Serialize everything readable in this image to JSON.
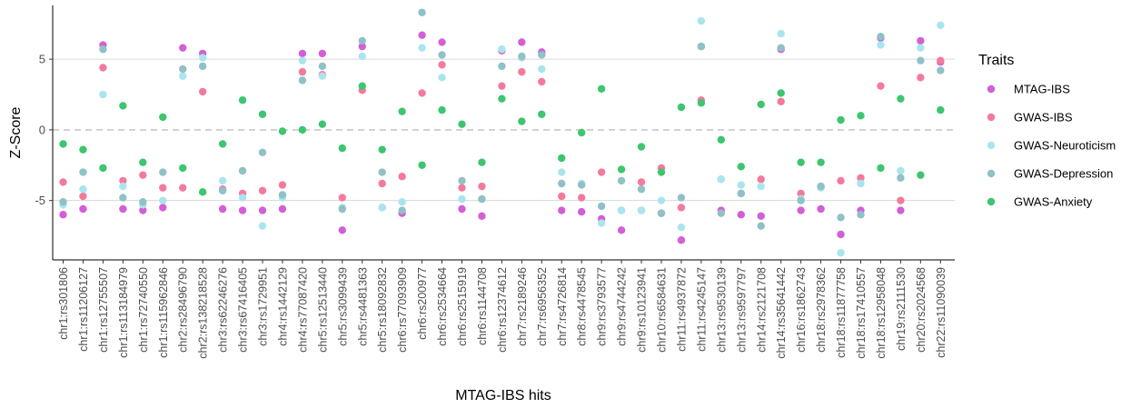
{
  "chart_data": {
    "type": "scatter",
    "title": "",
    "xlabel": "MTAG-IBS hits",
    "ylabel": "Z-Score",
    "ylim": [
      -9.2,
      8.8
    ],
    "yticks": [
      -5,
      0,
      5
    ],
    "grid": "horizontal major lines at -5 and 5, dashed line at 0",
    "legend": {
      "title": "Traits",
      "placement": "right"
    },
    "categories": [
      "chr1:rs301806",
      "chr1:rs11206127",
      "chr1:rs12755507",
      "chr1:rs113184979",
      "chr1:rs72740550",
      "chr1:rs115962846",
      "chr2:rs28496790",
      "chr2:rs138218528",
      "chr3:rs62246276",
      "chr3:rs67416405",
      "chr3:rs1729951",
      "chr4:rs1442129",
      "chr4:rs77087420",
      "chr5:rs12513440",
      "chr5:rs3099439",
      "chr5:rs4481363",
      "chr5:rs18092832",
      "chr6:rs77093909",
      "chr6:rs200977",
      "chr6:rs2534664",
      "chr6:rs2515919",
      "chr6:rs1144708",
      "chr6:rs12374612",
      "chr7:rs2189246",
      "chr7:rs6956352",
      "chr7:rs4726814",
      "chr8:rs4478545",
      "chr9:rs3793577",
      "chr9:rs4744242",
      "chr9:rs10123941",
      "chr10:rs6584631",
      "chr11:rs4937872",
      "chr11:rs4245147",
      "chr13:rs9530139",
      "chr13:rs9597797",
      "chr14:rs2121708",
      "chr14:rs35641442",
      "chr16:rs1862743",
      "chr18:rs2978362",
      "chr18:rs11877758",
      "chr18:rs17410557",
      "chr18:rs12958048",
      "chr19:rs2111530",
      "chr20:rs2024568",
      "chr22:rs11090039"
    ],
    "series": [
      {
        "name": "MTAG-IBS",
        "color": "#d35fd6",
        "values": [
          -6.0,
          -5.6,
          6.0,
          -5.6,
          -5.7,
          -5.5,
          5.8,
          5.4,
          -5.6,
          -5.7,
          -5.7,
          -5.6,
          5.4,
          5.4,
          -7.1,
          5.9,
          -5.5,
          -5.9,
          6.7,
          6.2,
          -5.6,
          -6.1,
          5.6,
          6.2,
          5.5,
          -5.7,
          -5.8,
          -6.3,
          -7.1,
          -5.7,
          -5.9,
          -7.8,
          5.9,
          -5.7,
          -6.0,
          -6.1,
          5.7,
          -5.7,
          -5.6,
          -7.4,
          -5.7,
          6.5,
          -5.7,
          6.3,
          4.8
        ]
      },
      {
        "name": "GWAS-IBS",
        "color": "#f47a9c",
        "values": [
          -3.7,
          -4.7,
          4.4,
          -3.6,
          -3.2,
          -4.1,
          -4.1,
          2.7,
          -4.2,
          -4.5,
          -4.3,
          -3.9,
          4.1,
          3.9,
          -4.8,
          2.8,
          -3.8,
          -3.3,
          2.6,
          4.6,
          -4.1,
          -4.0,
          3.1,
          4.1,
          3.4,
          -4.7,
          -4.8,
          -3.0,
          -5.7,
          -3.7,
          -2.7,
          -5.5,
          2.1,
          -3.5,
          -4.5,
          -3.5,
          2.0,
          -4.5,
          -4.0,
          -3.6,
          -3.4,
          3.1,
          -5.0,
          3.7,
          4.9
        ]
      },
      {
        "name": "GWAS-Neuroticism",
        "color": "#a9e5ee",
        "values": [
          -5.3,
          -4.2,
          2.5,
          -4.0,
          -5.3,
          -5.0,
          3.8,
          5.1,
          -3.6,
          -4.8,
          -6.8,
          -4.8,
          4.9,
          3.8,
          -5.5,
          5.2,
          -5.5,
          -5.1,
          5.8,
          3.7,
          -4.9,
          -4.9,
          5.7,
          5.1,
          4.3,
          -3.0,
          -3.8,
          -6.6,
          -5.7,
          -5.7,
          -5.0,
          -6.9,
          7.7,
          -3.5,
          -3.9,
          -4.0,
          6.8,
          -4.9,
          -4.1,
          -8.7,
          -3.8,
          6.0,
          -2.9,
          5.8,
          7.4
        ]
      },
      {
        "name": "GWAS-Depression",
        "color": "#8fc1c7",
        "values": [
          -5.1,
          -3.0,
          5.7,
          -4.8,
          -5.1,
          -3.0,
          4.3,
          4.5,
          -4.3,
          -2.9,
          -1.6,
          -4.6,
          3.5,
          4.5,
          -5.6,
          6.3,
          -3.0,
          -5.7,
          8.3,
          5.3,
          -3.6,
          -4.9,
          4.5,
          5.2,
          5.3,
          -3.8,
          -3.9,
          -5.4,
          -3.6,
          -4.2,
          -5.9,
          -4.8,
          5.9,
          -5.9,
          -4.5,
          -6.8,
          5.8,
          -5.0,
          -4.0,
          -6.2,
          -6.0,
          6.6,
          -3.4,
          4.9,
          4.2
        ]
      },
      {
        "name": "GWAS-Anxiety",
        "color": "#3dc56f",
        "values": [
          -1.0,
          -1.4,
          -2.7,
          1.7,
          -2.3,
          0.9,
          -2.7,
          -4.4,
          -1.0,
          2.1,
          1.1,
          -0.1,
          0.0,
          0.4,
          -1.3,
          3.1,
          -1.4,
          1.3,
          -2.5,
          1.4,
          0.4,
          -2.3,
          2.2,
          0.6,
          1.1,
          -2.0,
          -0.2,
          2.9,
          -2.8,
          -1.2,
          -3.0,
          1.6,
          1.9,
          -0.7,
          -2.6,
          1.8,
          2.6,
          -2.3,
          -2.3,
          0.7,
          1.0,
          -2.7,
          2.2,
          -3.2,
          1.4
        ]
      }
    ]
  }
}
